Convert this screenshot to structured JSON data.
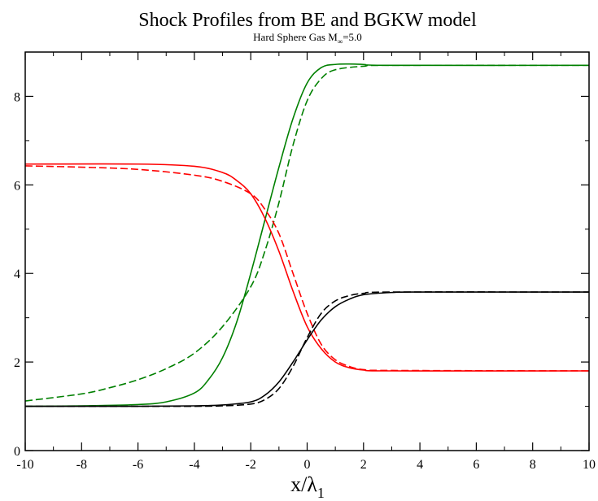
{
  "chart_data": {
    "type": "line",
    "title": "Shock Profiles from BE and BGKW model",
    "subtitle": {
      "text": "Hard Sphere Gas M",
      "subscript": "∞",
      "suffix": "=5.0"
    },
    "xlabel": {
      "text": "x/λ",
      "subscript": "1"
    },
    "ylabel": "",
    "xlim": [
      -10,
      10
    ],
    "ylim": [
      0,
      9
    ],
    "x_ticks": [
      -10,
      -8,
      -6,
      -4,
      -2,
      0,
      2,
      4,
      6,
      8,
      10
    ],
    "y_ticks": [
      0,
      2,
      4,
      6,
      8
    ],
    "x_tick_labels": [
      "-10",
      "-8",
      "-6",
      "-4",
      "-2",
      "0",
      "2",
      "4",
      "6",
      "8",
      "10"
    ],
    "y_tick_labels": [
      "0",
      "2",
      "4",
      "6",
      "8"
    ],
    "grid": false,
    "legend": "none",
    "series": [
      {
        "color": "#008000",
        "dash": "solid",
        "points": [
          [
            -10,
            1.0
          ],
          [
            -8,
            1.01
          ],
          [
            -6,
            1.04
          ],
          [
            -5,
            1.1
          ],
          [
            -4,
            1.3
          ],
          [
            -3.5,
            1.6
          ],
          [
            -3,
            2.1
          ],
          [
            -2.5,
            2.9
          ],
          [
            -2,
            4.0
          ],
          [
            -1.5,
            5.2
          ],
          [
            -1,
            6.4
          ],
          [
            -0.5,
            7.5
          ],
          [
            0,
            8.3
          ],
          [
            0.5,
            8.65
          ],
          [
            1,
            8.72
          ],
          [
            1.5,
            8.73
          ],
          [
            2,
            8.72
          ],
          [
            3,
            8.7
          ],
          [
            10,
            8.7
          ]
        ]
      },
      {
        "color": "#008000",
        "dash": "dashed",
        "points": [
          [
            -10,
            1.12
          ],
          [
            -8,
            1.28
          ],
          [
            -7,
            1.42
          ],
          [
            -6,
            1.6
          ],
          [
            -5,
            1.85
          ],
          [
            -4,
            2.2
          ],
          [
            -3,
            2.8
          ],
          [
            -2,
            3.7
          ],
          [
            -1.5,
            4.5
          ],
          [
            -1,
            5.6
          ],
          [
            -0.5,
            6.9
          ],
          [
            0,
            7.9
          ],
          [
            0.5,
            8.4
          ],
          [
            1,
            8.6
          ],
          [
            2,
            8.68
          ],
          [
            3,
            8.7
          ],
          [
            10,
            8.7
          ]
        ]
      },
      {
        "color": "#ff0000",
        "dash": "solid",
        "points": [
          [
            -10,
            6.47
          ],
          [
            -6,
            6.47
          ],
          [
            -4,
            6.42
          ],
          [
            -3,
            6.28
          ],
          [
            -2.5,
            6.1
          ],
          [
            -2,
            5.8
          ],
          [
            -1.5,
            5.25
          ],
          [
            -1,
            4.5
          ],
          [
            -0.5,
            3.6
          ],
          [
            0,
            2.8
          ],
          [
            0.5,
            2.3
          ],
          [
            1,
            2.0
          ],
          [
            1.5,
            1.87
          ],
          [
            2,
            1.82
          ],
          [
            3,
            1.8
          ],
          [
            10,
            1.8
          ]
        ]
      },
      {
        "color": "#ff0000",
        "dash": "dashed",
        "points": [
          [
            -10,
            6.43
          ],
          [
            -8,
            6.4
          ],
          [
            -6,
            6.35
          ],
          [
            -4,
            6.22
          ],
          [
            -3,
            6.08
          ],
          [
            -2,
            5.8
          ],
          [
            -1.5,
            5.45
          ],
          [
            -1,
            4.9
          ],
          [
            -0.5,
            4.0
          ],
          [
            0,
            3.1
          ],
          [
            0.5,
            2.4
          ],
          [
            1,
            2.05
          ],
          [
            1.5,
            1.9
          ],
          [
            2,
            1.83
          ],
          [
            3,
            1.81
          ],
          [
            10,
            1.8
          ]
        ]
      },
      {
        "color": "#000000",
        "dash": "solid",
        "points": [
          [
            -10,
            1.0
          ],
          [
            -6,
            1.0
          ],
          [
            -4,
            1.01
          ],
          [
            -3,
            1.03
          ],
          [
            -2,
            1.1
          ],
          [
            -1.5,
            1.25
          ],
          [
            -1,
            1.55
          ],
          [
            -0.5,
            2.0
          ],
          [
            0,
            2.5
          ],
          [
            0.5,
            2.95
          ],
          [
            1,
            3.25
          ],
          [
            1.5,
            3.42
          ],
          [
            2,
            3.52
          ],
          [
            3,
            3.57
          ],
          [
            4,
            3.58
          ],
          [
            10,
            3.58
          ]
        ]
      },
      {
        "color": "#000000",
        "dash": "dashed",
        "points": [
          [
            -10,
            1.0
          ],
          [
            -6,
            1.0
          ],
          [
            -4,
            1.0
          ],
          [
            -3,
            1.01
          ],
          [
            -2,
            1.05
          ],
          [
            -1.5,
            1.15
          ],
          [
            -1,
            1.4
          ],
          [
            -0.5,
            1.9
          ],
          [
            0,
            2.55
          ],
          [
            0.5,
            3.1
          ],
          [
            1,
            3.38
          ],
          [
            1.5,
            3.5
          ],
          [
            2,
            3.55
          ],
          [
            3,
            3.58
          ],
          [
            10,
            3.58
          ]
        ]
      }
    ]
  }
}
